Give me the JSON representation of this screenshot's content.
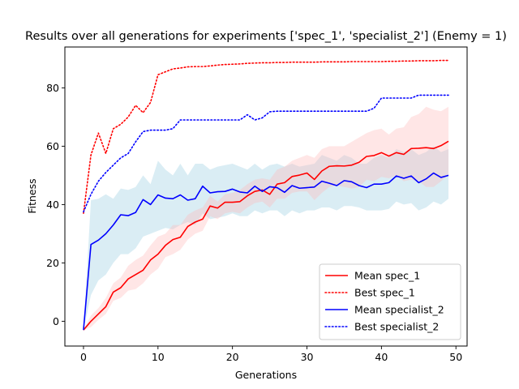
{
  "chart_data": {
    "type": "line",
    "title": "Results over all generations for experiments ['spec_1', 'specialist_2'] (Enemy = 1)",
    "xlabel": "Generations",
    "ylabel": "Fitness",
    "xlim": [
      -2.5,
      51.5
    ],
    "ylim": [
      -8.5,
      94
    ],
    "xticks": [
      0,
      10,
      20,
      30,
      40,
      50
    ],
    "yticks": [
      0,
      20,
      40,
      60,
      80
    ],
    "legend_position": "lower-right",
    "x": [
      0,
      1,
      2,
      3,
      4,
      5,
      6,
      7,
      8,
      9,
      10,
      11,
      12,
      13,
      14,
      15,
      16,
      17,
      18,
      19,
      20,
      21,
      22,
      23,
      24,
      25,
      26,
      27,
      28,
      29,
      30,
      31,
      32,
      33,
      34,
      35,
      36,
      37,
      38,
      39,
      40,
      41,
      42,
      43,
      44,
      45,
      46,
      47,
      48,
      49
    ],
    "series": [
      {
        "name": "Mean spec_1",
        "kind": "mean",
        "color": "#ff0000",
        "style": "solid",
        "values": [
          -3,
          0,
          2.5,
          5,
          10,
          11.5,
          14.5,
          16,
          17.5,
          21,
          23,
          26,
          28,
          28.8,
          32.5,
          34,
          35,
          39.5,
          38.8,
          40.8,
          40.8,
          41,
          43,
          44.5,
          45,
          43.5,
          47,
          47.5,
          49.6,
          50.1,
          50.8,
          48.6,
          51.5,
          53.1,
          53.3,
          53.2,
          53.5,
          54.5,
          56.5,
          56.8,
          57.8,
          56.6,
          57.8,
          57.2,
          59.2,
          59.3,
          59.5,
          59.2,
          60.2,
          61.7
        ],
        "band_upper": [
          -3,
          2,
          4.5,
          8,
          13,
          15,
          19,
          21,
          22.5,
          26,
          29,
          30,
          33,
          33,
          36.5,
          38,
          39,
          43,
          41,
          43.5,
          44,
          45,
          47,
          48.5,
          49,
          48.5,
          52,
          53,
          55,
          56,
          57,
          56,
          59,
          60,
          60,
          60,
          61.5,
          63,
          64.5,
          65.5,
          66,
          64,
          66,
          66.5,
          70,
          71,
          73.5,
          72.5,
          72,
          73.5
        ],
        "band_lower": [
          -3,
          -2,
          0.5,
          2.5,
          7,
          8,
          10.5,
          11,
          13,
          16,
          18,
          22,
          23,
          24.5,
          28,
          30,
          31,
          36,
          35,
          37,
          37.5,
          37,
          39,
          40.5,
          41,
          39,
          42,
          42,
          44,
          44.5,
          44.5,
          41.5,
          44,
          46,
          46.5,
          46,
          45.5,
          46,
          48.5,
          48,
          49.5,
          49,
          50,
          48,
          48.5,
          48,
          46,
          46,
          48,
          50
        ]
      },
      {
        "name": "Best spec_1",
        "kind": "best",
        "color": "#ff0000",
        "style": "dotted",
        "values": [
          37,
          57,
          64.5,
          57.5,
          66,
          67.5,
          70,
          74,
          71.5,
          75,
          84.5,
          85.5,
          86.5,
          86.8,
          87.2,
          87.3,
          87.3,
          87.5,
          87.8,
          88,
          88.1,
          88.2,
          88.4,
          88.5,
          88.6,
          88.6,
          88.7,
          88.7,
          88.8,
          88.8,
          88.8,
          88.8,
          88.9,
          88.9,
          88.9,
          88.9,
          89,
          89,
          89,
          89,
          89,
          89.1,
          89.1,
          89.2,
          89.2,
          89.3,
          89.3,
          89.3,
          89.4,
          89.4
        ]
      },
      {
        "name": "Mean specialist_2",
        "kind": "mean",
        "color": "#0000ff",
        "style": "solid",
        "values": [
          -3,
          26.3,
          27.8,
          30,
          33,
          36.5,
          36.2,
          37.3,
          41.7,
          40,
          43.3,
          42.2,
          42,
          43.3,
          41.5,
          42,
          46.3,
          44,
          44.4,
          44.5,
          45.3,
          44.3,
          44,
          46.3,
          44.5,
          46.1,
          45.8,
          44.2,
          46.5,
          45.6,
          45.8,
          46,
          48,
          47.3,
          46.5,
          48.2,
          47.8,
          46.5,
          45.8,
          47,
          47,
          47.5,
          49.8,
          49,
          49.8,
          47.5,
          48.8,
          50.8,
          49.3,
          50
        ]
      },
      {
        "name": "Best specialist_2",
        "kind": "best",
        "color": "#0000ff",
        "style": "dotted",
        "values": [
          37.5,
          43.5,
          48,
          51,
          53.5,
          56,
          57.5,
          61.5,
          65,
          65.5,
          65.5,
          65.5,
          66,
          69,
          69,
          69,
          69,
          69,
          69,
          69,
          69,
          69,
          70.8,
          69,
          69.7,
          71.8,
          72,
          72,
          72,
          72,
          72,
          72,
          72,
          72,
          72,
          72,
          72,
          72,
          72,
          73,
          76.5,
          76.5,
          76.5,
          76.5,
          76.5,
          77.5,
          77.5,
          77.5,
          77.5,
          77.5
        ]
      }
    ],
    "band_specialist_2": {
      "upper": [
        -3,
        41.5,
        42,
        43.5,
        42,
        45.5,
        45,
        46,
        50,
        47,
        55,
        52,
        50,
        54,
        50,
        54,
        54,
        52,
        53,
        53.5,
        54,
        53,
        52,
        54,
        52,
        53.5,
        54,
        53,
        54,
        53,
        53.5,
        54,
        57,
        56,
        55,
        57,
        56,
        54,
        54,
        56,
        57,
        56,
        59,
        58,
        59,
        57,
        58,
        60,
        58,
        59
      ],
      "lower": [
        -3,
        9,
        14,
        16,
        20,
        23,
        23,
        25,
        29,
        30,
        31,
        32,
        31.5,
        33,
        34,
        33,
        37,
        35,
        35.5,
        36,
        37,
        36,
        36,
        38,
        37,
        38,
        38,
        36,
        38,
        37,
        38,
        38,
        39,
        39,
        38,
        39.5,
        39.5,
        39,
        38,
        38,
        38,
        38.5,
        41,
        40,
        40.5,
        38,
        39,
        41,
        40,
        42
      ]
    }
  }
}
